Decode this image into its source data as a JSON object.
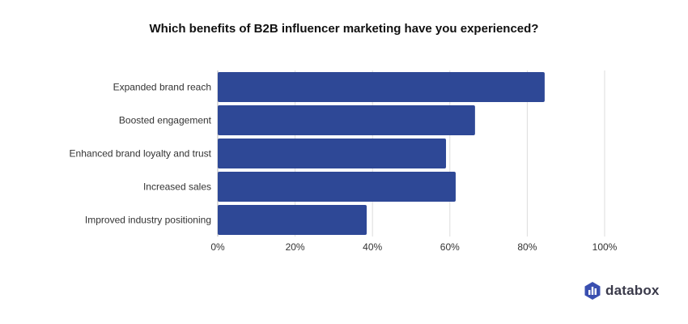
{
  "chart_data": {
    "type": "bar",
    "orientation": "horizontal",
    "title": "Which benefits of B2B influencer marketing have you experienced?",
    "categories": [
      "Expanded brand reach",
      "Boosted engagement",
      "Enhanced brand loyalty and trust",
      "Increased sales",
      "Improved industry positioning"
    ],
    "values": [
      84.5,
      66.5,
      59,
      61.5,
      38.5
    ],
    "xlim": [
      0,
      100
    ],
    "x_ticks": [
      0,
      20,
      40,
      60,
      80,
      100
    ],
    "x_tick_labels": [
      "0%",
      "20%",
      "40%",
      "60%",
      "80%",
      "100%"
    ],
    "grid": "vertical",
    "bar_color": "#2e4896",
    "grid_color": "#dddddd"
  },
  "brand": {
    "name": "databox",
    "icon": "databox-logo-icon",
    "colors": [
      "#5b6cc9",
      "#3a4fb0",
      "#2b3a8c"
    ]
  }
}
